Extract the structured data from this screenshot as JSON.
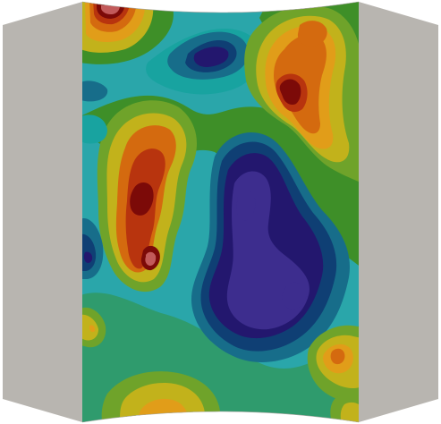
{
  "scene": {
    "background": "#ffffff",
    "wall_color": "#b8b5b0",
    "wall_edge_color": "#a9a6a1",
    "colormap": [
      "#3d2d8e",
      "#23176e",
      "#0f3f74",
      "#176d8a",
      "#2aa6aa",
      "#18a3a0",
      "#2f9b6d",
      "#3e8f28",
      "#6fa32a",
      "#c2b21b",
      "#e19d19",
      "#d46a0f",
      "#b8340e",
      "#7c0a08",
      "#c25a5a"
    ]
  }
}
